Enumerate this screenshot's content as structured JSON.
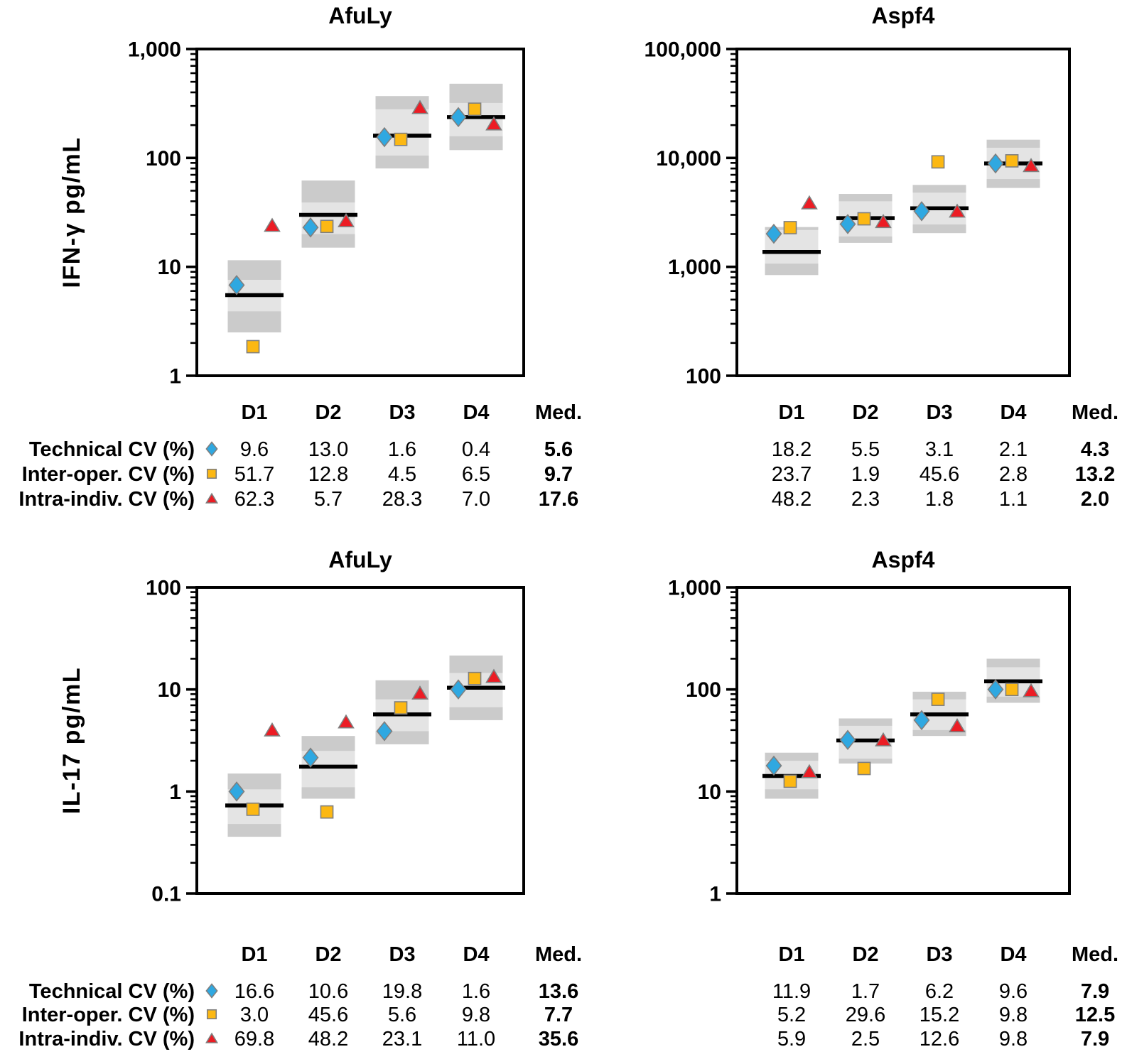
{
  "figure": {
    "colors": {
      "technical": "#2FA8E1",
      "inter_operator": "#FCB813",
      "intra_individual": "#EC1C24",
      "marker_stroke": "#7F7F7F",
      "box_outer": "#CBCBCB",
      "box_inner": "#E4E4E4",
      "median_line": "#000000"
    },
    "legend_rows": [
      {
        "label": "Technical CV (%)",
        "marker": "diamond-icon"
      },
      {
        "label": "Inter-oper. CV (%)",
        "marker": "square-icon"
      },
      {
        "label": "Intra-indiv. CV (%)",
        "marker": "triangle-icon"
      }
    ]
  },
  "chart_data": [
    {
      "id": "ifng-afuly",
      "type": "scatter",
      "position": "top-left",
      "title": "AfuLy",
      "ylabel": "IFN-γ pg/mL",
      "ylim": [
        1,
        1000
      ],
      "grid": false,
      "yticks": [
        {
          "value": 1,
          "label": "1"
        },
        {
          "value": 10,
          "label": "10"
        },
        {
          "value": 100,
          "label": "100"
        },
        {
          "value": 1000,
          "label": "1,000"
        }
      ],
      "categories": [
        "D1",
        "D2",
        "D3",
        "D4"
      ],
      "boxes": [
        {
          "outer": [
            2.5,
            11.5
          ],
          "inner": [
            3.9,
            7.6
          ],
          "median": 5.5
        },
        {
          "outer": [
            15,
            62
          ],
          "inner": [
            20,
            39
          ],
          "median": 30
        },
        {
          "outer": [
            80,
            370
          ],
          "inner": [
            105,
            280
          ],
          "median": 160
        },
        {
          "outer": [
            118,
            480
          ],
          "inner": [
            158,
            320
          ],
          "median": 237
        }
      ],
      "series": [
        {
          "name": "Technical CV (%)",
          "marker": "diamond",
          "values": [
            6.8,
            23,
            155,
            237
          ]
        },
        {
          "name": "Inter-oper. CV (%)",
          "marker": "square",
          "values": [
            1.85,
            23.5,
            148,
            280
          ]
        },
        {
          "name": "Intra-indiv. CV (%)",
          "marker": "triangle",
          "values": [
            24,
            26.5,
            290,
            205
          ]
        }
      ],
      "table": {
        "header": [
          "D1",
          "D2",
          "D3",
          "D4",
          "Med."
        ],
        "rows": [
          {
            "label": "Technical CV (%)",
            "marker": "diamond",
            "values": [
              "9.6",
              "13.0",
              "1.6",
              "0.4"
            ],
            "median": "5.6"
          },
          {
            "label": "Inter-oper. CV (%)",
            "marker": "square",
            "values": [
              "51.7",
              "12.8",
              "4.5",
              "6.5"
            ],
            "median": "9.7"
          },
          {
            "label": "Intra-indiv. CV (%)",
            "marker": "triangle",
            "values": [
              "62.3",
              "5.7",
              "28.3",
              "7.0"
            ],
            "median": "17.6"
          }
        ]
      }
    },
    {
      "id": "ifng-aspf4",
      "type": "scatter",
      "position": "top-right",
      "title": "Aspf4",
      "ylabel": null,
      "ylim": [
        100,
        100000
      ],
      "grid": false,
      "yticks": [
        {
          "value": 100,
          "label": "100"
        },
        {
          "value": 1000,
          "label": "1,000"
        },
        {
          "value": 10000,
          "label": "10,000"
        },
        {
          "value": 100000,
          "label": "100,000"
        }
      ],
      "categories": [
        "D1",
        "D2",
        "D3",
        "D4"
      ],
      "boxes": [
        {
          "outer": [
            840,
            2320
          ],
          "inner": [
            1070,
            2180
          ],
          "median": 1370
        },
        {
          "outer": [
            1660,
            4670
          ],
          "inner": [
            1900,
            4000
          ],
          "median": 2800
        },
        {
          "outer": [
            2040,
            5650
          ],
          "inner": [
            2450,
            4800
          ],
          "median": 3450
        },
        {
          "outer": [
            5300,
            14700
          ],
          "inner": [
            6400,
            12400
          ],
          "median": 8900
        }
      ],
      "series": [
        {
          "name": "Technical CV (%)",
          "marker": "diamond",
          "values": [
            2010,
            2470,
            3240,
            8900
          ]
        },
        {
          "name": "Inter-oper. CV (%)",
          "marker": "square",
          "values": [
            2290,
            2760,
            9200,
            9400
          ]
        },
        {
          "name": "Intra-indiv. CV (%)",
          "marker": "triangle",
          "values": [
            3860,
            2600,
            3240,
            8500
          ]
        }
      ],
      "table": {
        "header": [
          "D1",
          "D2",
          "D3",
          "D4",
          "Med."
        ],
        "rows": [
          {
            "values": [
              "18.2",
              "5.5",
              "3.1",
              "2.1"
            ],
            "median": "4.3"
          },
          {
            "values": [
              "23.7",
              "1.9",
              "45.6",
              "2.8"
            ],
            "median": "13.2"
          },
          {
            "values": [
              "48.2",
              "2.3",
              "1.8",
              "1.1"
            ],
            "median": "2.0"
          }
        ]
      }
    },
    {
      "id": "il17-afuly",
      "type": "scatter",
      "position": "bottom-left",
      "title": "AfuLy",
      "ylabel": "IL-17 pg/mL",
      "ylim": [
        0.1,
        100
      ],
      "grid": false,
      "yticks": [
        {
          "value": 0.1,
          "label": "0.1"
        },
        {
          "value": 1,
          "label": "1"
        },
        {
          "value": 10,
          "label": "10"
        },
        {
          "value": 100,
          "label": "100"
        }
      ],
      "categories": [
        "D1",
        "D2",
        "D3",
        "D4"
      ],
      "boxes": [
        {
          "outer": [
            0.36,
            1.5
          ],
          "inner": [
            0.48,
            1.05
          ],
          "median": 0.73
        },
        {
          "outer": [
            0.85,
            3.5
          ],
          "inner": [
            1.1,
            2.5
          ],
          "median": 1.75
        },
        {
          "outer": [
            2.9,
            12.3
          ],
          "inner": [
            3.9,
            8.0
          ],
          "median": 5.7
        },
        {
          "outer": [
            5.0,
            21.5
          ],
          "inner": [
            6.7,
            14.5
          ],
          "median": 10.4
        }
      ],
      "series": [
        {
          "name": "Technical CV (%)",
          "marker": "diamond",
          "values": [
            1.0,
            2.15,
            3.9,
            10.0
          ]
        },
        {
          "name": "Inter-oper. CV (%)",
          "marker": "square",
          "values": [
            0.67,
            0.63,
            6.6,
            12.8
          ]
        },
        {
          "name": "Intra-indiv. CV (%)",
          "marker": "triangle",
          "values": [
            4.0,
            4.8,
            9.2,
            13.4
          ]
        }
      ],
      "table": {
        "header": [
          "D1",
          "D2",
          "D3",
          "D4",
          "Med."
        ],
        "rows": [
          {
            "label": "Technical CV (%)",
            "marker": "diamond",
            "values": [
              "16.6",
              "10.6",
              "19.8",
              "1.6"
            ],
            "median": "13.6"
          },
          {
            "label": "Inter-oper. CV (%)",
            "marker": "square",
            "values": [
              "3.0",
              "45.6",
              "5.6",
              "9.8"
            ],
            "median": "7.7"
          },
          {
            "label": "Intra-indiv. CV (%)",
            "marker": "triangle",
            "values": [
              "69.8",
              "48.2",
              "23.1",
              "11.0"
            ],
            "median": "35.6"
          }
        ]
      }
    },
    {
      "id": "il17-aspf4",
      "type": "scatter",
      "position": "bottom-right",
      "title": "Aspf4",
      "ylabel": null,
      "ylim": [
        1,
        1000
      ],
      "grid": false,
      "yticks": [
        {
          "value": 1,
          "label": "1"
        },
        {
          "value": 10,
          "label": "10"
        },
        {
          "value": 100,
          "label": "100"
        },
        {
          "value": 1000,
          "label": "1,000"
        }
      ],
      "categories": [
        "D1",
        "D2",
        "D3",
        "D4"
      ],
      "boxes": [
        {
          "outer": [
            8.5,
            24
          ],
          "inner": [
            10.5,
            20
          ],
          "median": 14.2
        },
        {
          "outer": [
            18.8,
            52
          ],
          "inner": [
            21,
            44
          ],
          "median": 31.6
        },
        {
          "outer": [
            35,
            95
          ],
          "inner": [
            40,
            80
          ],
          "median": 57
        },
        {
          "outer": [
            74,
            200
          ],
          "inner": [
            85,
            165
          ],
          "median": 120
        }
      ],
      "series": [
        {
          "name": "Technical CV (%)",
          "marker": "diamond",
          "values": [
            17.9,
            32,
            50,
            100
          ]
        },
        {
          "name": "Inter-oper. CV (%)",
          "marker": "square",
          "values": [
            12.6,
            16.8,
            80,
            100
          ]
        },
        {
          "name": "Intra-indiv. CV (%)",
          "marker": "triangle",
          "values": [
            15.6,
            32,
            44,
            97
          ]
        }
      ],
      "table": {
        "header": [
          "D1",
          "D2",
          "D3",
          "D4",
          "Med."
        ],
        "rows": [
          {
            "values": [
              "11.9",
              "1.7",
              "6.2",
              "9.6"
            ],
            "median": "7.9"
          },
          {
            "values": [
              "5.2",
              "29.6",
              "15.2",
              "9.8"
            ],
            "median": "12.5"
          },
          {
            "values": [
              "5.9",
              "2.5",
              "12.6",
              "9.8"
            ],
            "median": "7.9"
          }
        ]
      }
    }
  ]
}
